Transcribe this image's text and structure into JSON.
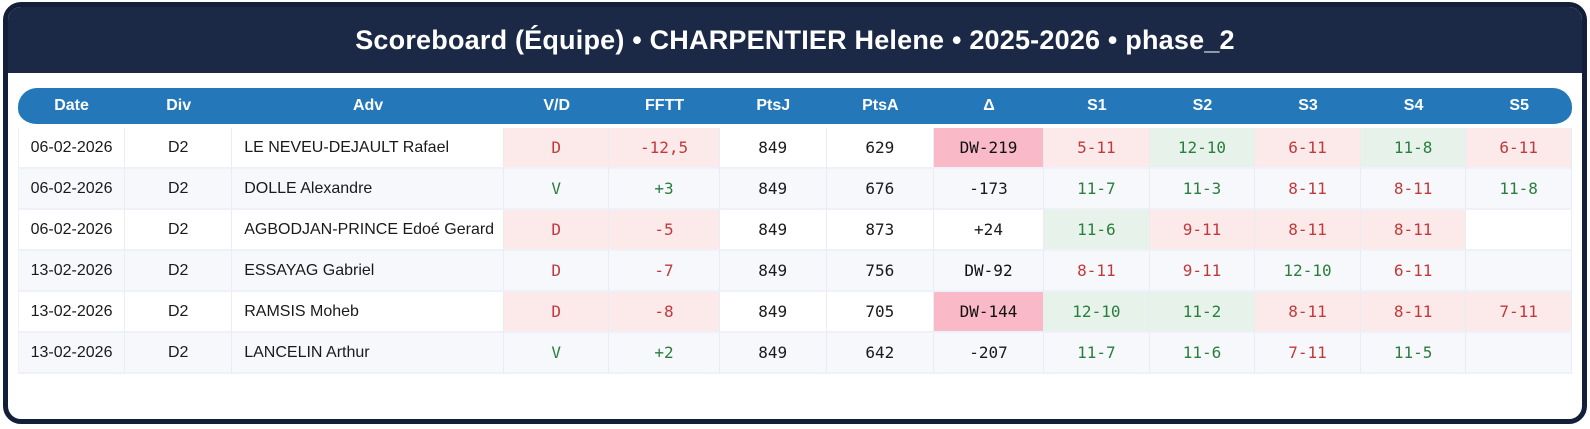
{
  "title": "Scoreboard (Équipe) • CHARPENTIER Helene • 2025-2026 • phase_2",
  "colors": {
    "navy": "#1b2947",
    "navy_border": "#131f38",
    "accent_blue": "#2478ba",
    "win_text": "#2a7e3e",
    "win_bg": "#e7f3ea",
    "loss_text": "#c03a3c",
    "loss_bg": "#fceaea",
    "delta_bg": "#f9b9c6",
    "zebra": "#f7f8fc"
  },
  "table": {
    "columns": [
      "Date",
      "Div",
      "Adv",
      "V/D",
      "FFTT",
      "PtsJ",
      "PtsA",
      "Δ",
      "S1",
      "S2",
      "S3",
      "S4",
      "S5"
    ],
    "rows": [
      {
        "date": "06-02-2026",
        "div": "D2",
        "adv": "LE NEVEU-DEJAULT Rafael",
        "vd": "D",
        "result": "loss",
        "fftt": "-12,5",
        "ptsj": "849",
        "ptsa": "629",
        "delta": "DW-219",
        "delta_highlight": true,
        "sets": [
          {
            "score": "5-11",
            "won": false
          },
          {
            "score": "12-10",
            "won": true
          },
          {
            "score": "6-11",
            "won": false
          },
          {
            "score": "11-8",
            "won": true
          },
          {
            "score": "6-11",
            "won": false
          }
        ]
      },
      {
        "date": "06-02-2026",
        "div": "D2",
        "adv": "DOLLE Alexandre",
        "vd": "V",
        "result": "win",
        "fftt": "+3",
        "ptsj": "849",
        "ptsa": "676",
        "delta": "-173",
        "delta_highlight": false,
        "sets": [
          {
            "score": "11-7",
            "won": true
          },
          {
            "score": "11-3",
            "won": true
          },
          {
            "score": "8-11",
            "won": false
          },
          {
            "score": "8-11",
            "won": false
          },
          {
            "score": "11-8",
            "won": true
          }
        ]
      },
      {
        "date": "06-02-2026",
        "div": "D2",
        "adv": "AGBODJAN-PRINCE Edoé Gerard",
        "vd": "D",
        "result": "loss",
        "fftt": "-5",
        "ptsj": "849",
        "ptsa": "873",
        "delta": "+24",
        "delta_highlight": false,
        "sets": [
          {
            "score": "11-6",
            "won": true
          },
          {
            "score": "9-11",
            "won": false
          },
          {
            "score": "8-11",
            "won": false
          },
          {
            "score": "8-11",
            "won": false
          },
          null
        ]
      },
      {
        "date": "13-02-2026",
        "div": "D2",
        "adv": "ESSAYAG Gabriel",
        "vd": "D",
        "result": "loss",
        "fftt": "-7",
        "ptsj": "849",
        "ptsa": "756",
        "delta": "DW-92",
        "delta_highlight": true,
        "sets": [
          {
            "score": "8-11",
            "won": false
          },
          {
            "score": "9-11",
            "won": false
          },
          {
            "score": "12-10",
            "won": true
          },
          {
            "score": "6-11",
            "won": false
          },
          null
        ]
      },
      {
        "date": "13-02-2026",
        "div": "D2",
        "adv": "RAMSIS Moheb",
        "vd": "D",
        "result": "loss",
        "fftt": "-8",
        "ptsj": "849",
        "ptsa": "705",
        "delta": "DW-144",
        "delta_highlight": true,
        "sets": [
          {
            "score": "12-10",
            "won": true
          },
          {
            "score": "11-2",
            "won": true
          },
          {
            "score": "8-11",
            "won": false
          },
          {
            "score": "8-11",
            "won": false
          },
          {
            "score": "7-11",
            "won": false
          }
        ]
      },
      {
        "date": "13-02-2026",
        "div": "D2",
        "adv": "LANCELIN Arthur",
        "vd": "V",
        "result": "win",
        "fftt": "+2",
        "ptsj": "849",
        "ptsa": "642",
        "delta": "-207",
        "delta_highlight": false,
        "sets": [
          {
            "score": "11-7",
            "won": true
          },
          {
            "score": "11-6",
            "won": true
          },
          {
            "score": "7-11",
            "won": false
          },
          {
            "score": "11-5",
            "won": true
          },
          null
        ]
      }
    ]
  }
}
